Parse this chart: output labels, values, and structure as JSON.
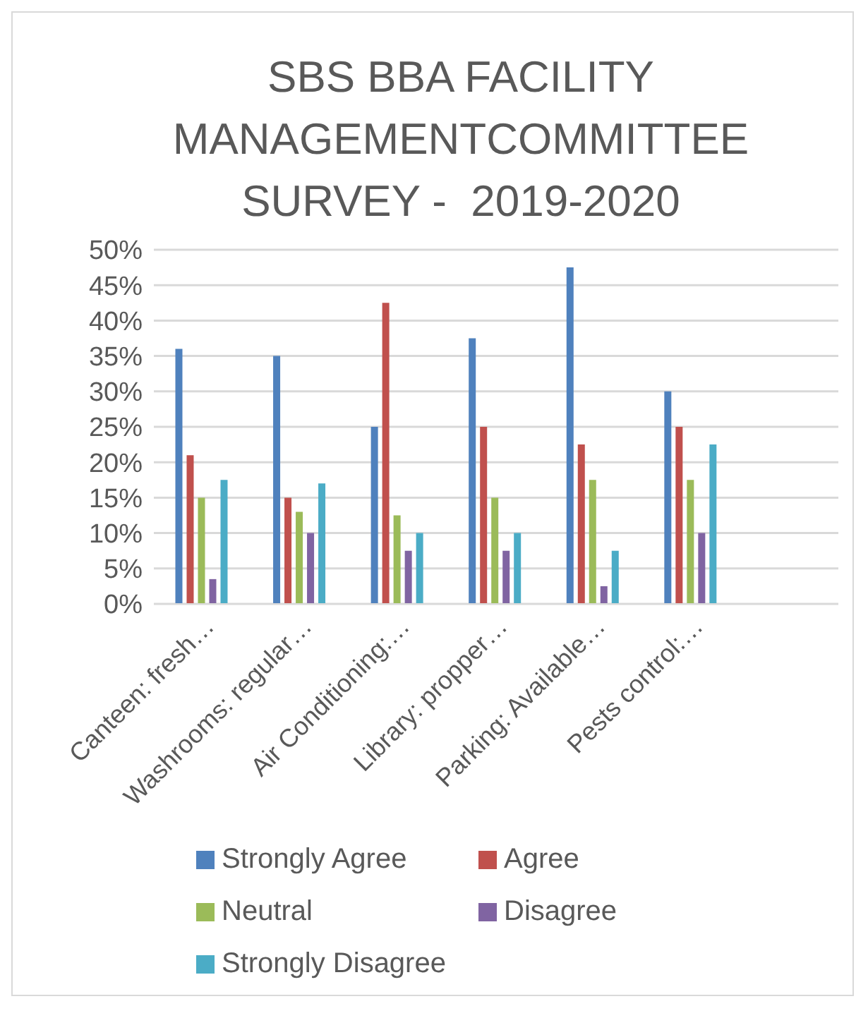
{
  "chart_data": {
    "type": "bar",
    "title": "SBS BBA FACILITY\nMANAGEMENTCOMMITTEE\nSURVEY -  2019-2020",
    "categories": [
      "Canteen: fresh…",
      "Washrooms: regular…",
      "Air Conditioning:…",
      "Library: propper…",
      "Parking: Available…",
      "Pests control:…",
      null
    ],
    "series": [
      {
        "name": "Strongly Agree",
        "color": "#4f81bd",
        "values": [
          36,
          35,
          25,
          37.5,
          47.5,
          30,
          null
        ]
      },
      {
        "name": "Agree",
        "color": "#c0504d",
        "values": [
          21,
          15,
          42.5,
          25,
          22.5,
          25,
          null
        ]
      },
      {
        "name": "Neutral",
        "color": "#9bbb59",
        "values": [
          15,
          13,
          12.5,
          15,
          17.5,
          17.5,
          null
        ]
      },
      {
        "name": "Disagree",
        "color": "#8064a2",
        "values": [
          3.5,
          10,
          7.5,
          7.5,
          2.5,
          10,
          null
        ]
      },
      {
        "name": "Strongly Disagree",
        "color": "#4bacc6",
        "values": [
          17.5,
          17,
          10,
          10,
          7.5,
          22.5,
          null
        ]
      }
    ],
    "ylim": [
      0,
      50
    ],
    "yticks": [
      {
        "value": 0,
        "label": "0%"
      },
      {
        "value": 5,
        "label": "5%"
      },
      {
        "value": 10,
        "label": "10%"
      },
      {
        "value": 15,
        "label": "15%"
      },
      {
        "value": 20,
        "label": "20%"
      },
      {
        "value": 25,
        "label": "25%"
      },
      {
        "value": 30,
        "label": "30%"
      },
      {
        "value": 35,
        "label": "35%"
      },
      {
        "value": 40,
        "label": "40%"
      },
      {
        "value": 45,
        "label": "45%"
      },
      {
        "value": 50,
        "label": "50%"
      }
    ],
    "grid": "y",
    "legend": "bottom"
  }
}
